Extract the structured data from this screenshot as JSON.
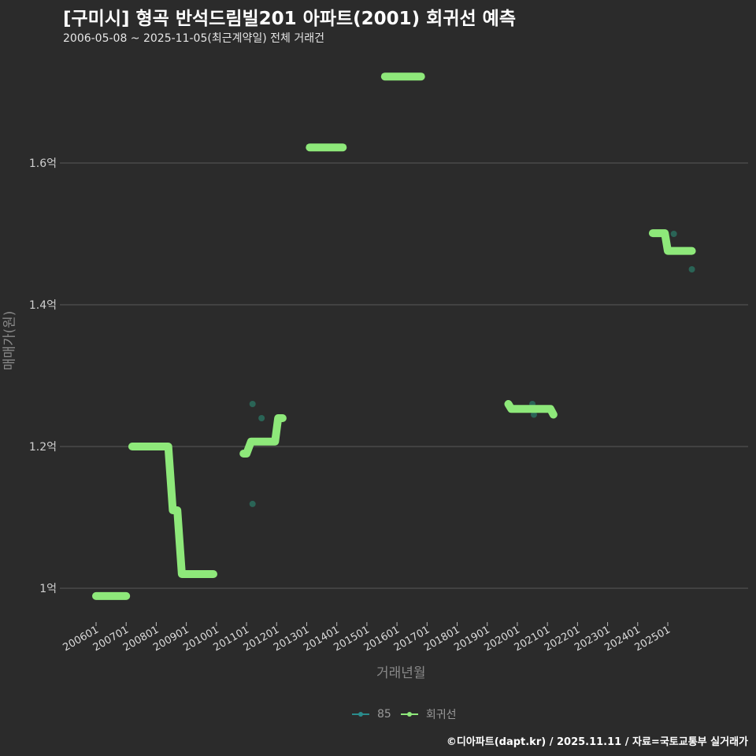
{
  "header": {
    "title": "[구미시] 형곡 반석드림빌201 아파트(2001) 회귀선 예측",
    "subtitle": "2006-05-08 ~ 2025-11-05(최근계약일) 전체 거래건"
  },
  "axes": {
    "ylabel": "매매가(원)",
    "xlabel": "거래년월"
  },
  "legend": {
    "items": [
      {
        "label": "85",
        "color": "#2a8c8c"
      },
      {
        "label": "회귀선",
        "color": "#8ee87a"
      }
    ]
  },
  "footer": "©디아파트(dapt.kr) / 2025.11.11 / 자료=국토교통부 실거래가",
  "colors": {
    "background": "#2b2b2b",
    "regression": "#8ee87a",
    "points": "#2a6e5e",
    "grid": "#5a5a5a"
  },
  "chart_data": {
    "type": "line",
    "title": "[구미시] 형곡 반석드림빌201 아파트(2001) 회귀선 예측",
    "subtitle": "2006-05-08 ~ 2025-11-05(최근계약일) 전체 거래건",
    "xlabel": "거래년월",
    "ylabel": "매매가(원)",
    "x_ticks": [
      "200601",
      "200701",
      "200801",
      "200901",
      "201001",
      "201101",
      "201201",
      "201301",
      "201401",
      "201501",
      "201601",
      "201701",
      "201801",
      "201901",
      "202001",
      "202101",
      "202201",
      "202301",
      "202401",
      "202501"
    ],
    "y_ticks": [
      {
        "value": 1.0,
        "label": "1억"
      },
      {
        "value": 1.2,
        "label": "1.2억"
      },
      {
        "value": 1.4,
        "label": "1.4억"
      },
      {
        "value": 1.6,
        "label": "1.6억"
      }
    ],
    "ylim": [
      0.96,
      1.76
    ],
    "unit": "억",
    "grid": true,
    "legend_position": "bottom",
    "series": [
      {
        "name": "회귀선",
        "segments": [
          [
            [
              2006.0,
              0.989
            ],
            [
              2007.0,
              0.989
            ]
          ],
          [
            [
              2007.2,
              1.2
            ],
            [
              2008.4,
              1.2
            ],
            [
              2008.55,
              1.11
            ],
            [
              2008.7,
              1.11
            ],
            [
              2008.85,
              1.02
            ],
            [
              2009.9,
              1.02
            ]
          ],
          [
            [
              2010.9,
              1.19
            ],
            [
              2011.0,
              1.19
            ],
            [
              2011.15,
              1.207
            ],
            [
              2011.95,
              1.207
            ],
            [
              2012.05,
              1.24
            ],
            [
              2012.2,
              1.24
            ]
          ],
          [
            [
              2013.1,
              1.622
            ],
            [
              2014.2,
              1.622
            ]
          ],
          [
            [
              2015.6,
              1.722
            ],
            [
              2016.8,
              1.722
            ]
          ],
          [
            [
              2019.7,
              1.26
            ],
            [
              2019.8,
              1.253
            ],
            [
              2021.1,
              1.253
            ],
            [
              2021.2,
              1.245
            ]
          ],
          [
            [
              2024.5,
              1.501
            ],
            [
              2024.9,
              1.501
            ],
            [
              2025.0,
              1.476
            ],
            [
              2025.8,
              1.476
            ]
          ]
        ]
      },
      {
        "name": "85",
        "points": [
          [
            2011.2,
            1.26
          ],
          [
            2011.5,
            1.24
          ],
          [
            2011.2,
            1.119
          ],
          [
            2020.5,
            1.26
          ],
          [
            2020.55,
            1.245
          ],
          [
            2025.2,
            1.5
          ],
          [
            2025.8,
            1.45
          ]
        ]
      }
    ]
  }
}
